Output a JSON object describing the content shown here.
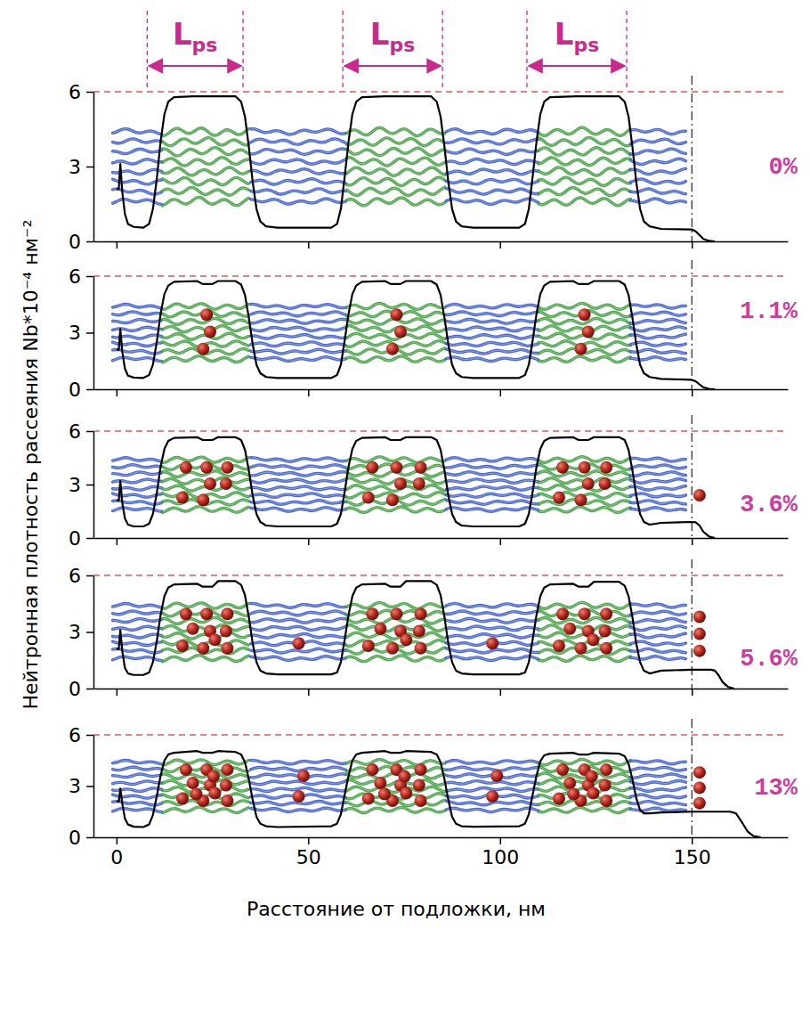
{
  "chart_data": [
    {
      "type": "line",
      "label": "0%",
      "color": "#000000",
      "xlim": [
        -6,
        175
      ],
      "ylim": [
        0,
        6
      ],
      "xticks": [
        0,
        50,
        100,
        150
      ],
      "yticks": [
        0,
        3,
        6
      ],
      "tick_labels": "y",
      "hlines": [
        6
      ],
      "vlines": [
        150
      ],
      "annotations": [
        {
          "text": "L",
          "subscript": "ps",
          "x0": 8,
          "x1": 33
        },
        {
          "text": "L",
          "subscript": "ps",
          "x0": 59,
          "x1": 85
        },
        {
          "text": "L",
          "subscript": "ps",
          "x0": 107,
          "x1": 133
        }
      ],
      "x": [
        0,
        0.6,
        1,
        1.5,
        2.2,
        3,
        4.5,
        7,
        8.5,
        9.5,
        10.5,
        11.5,
        12.5,
        13.5,
        15,
        20,
        31,
        32.5,
        33.5,
        34.5,
        35.5,
        36.5,
        37.5,
        39,
        42,
        56,
        57.5,
        58.5,
        59.5,
        60.5,
        61.5,
        62.5,
        64,
        70,
        82,
        83.5,
        84.5,
        85.5,
        86.5,
        87.5,
        88.5,
        90,
        93,
        105,
        106.5,
        107.5,
        108.5,
        109.5,
        110.5,
        111.5,
        113,
        120,
        131,
        132.5,
        133.5,
        134.5,
        135.5,
        136.5,
        137.5,
        139,
        142,
        150,
        151,
        152,
        153,
        154.5,
        156
      ],
      "values": [
        2.1,
        2.1,
        3.1,
        2.0,
        1.1,
        0.7,
        0.58,
        0.55,
        0.7,
        1.3,
        2.5,
        4.0,
        5.1,
        5.6,
        5.78,
        5.82,
        5.82,
        5.6,
        5.0,
        3.8,
        2.4,
        1.3,
        0.8,
        0.6,
        0.55,
        0.55,
        0.7,
        1.3,
        2.6,
        4.0,
        5.1,
        5.6,
        5.78,
        5.82,
        5.82,
        5.6,
        5.0,
        3.8,
        2.4,
        1.3,
        0.8,
        0.6,
        0.55,
        0.55,
        0.7,
        1.3,
        2.6,
        4.0,
        5.1,
        5.6,
        5.78,
        5.82,
        5.82,
        5.6,
        5.0,
        3.8,
        2.4,
        1.3,
        0.8,
        0.6,
        0.5,
        0.48,
        0.4,
        0.25,
        0.1,
        0.02,
        0
      ]
    },
    {
      "type": "line",
      "label": "1.1%",
      "color": "#000000",
      "xlim": [
        -6,
        175
      ],
      "ylim": [
        0,
        6
      ],
      "xticks": [
        0,
        50,
        100,
        150
      ],
      "yticks": [
        0,
        3,
        6
      ],
      "tick_labels": "y",
      "hlines": [
        6
      ],
      "vlines": [
        150
      ],
      "x": [
        0,
        0.6,
        1,
        1.5,
        2.2,
        3,
        4.5,
        7,
        8.5,
        9.5,
        10.5,
        11.5,
        12.5,
        13.5,
        15,
        21,
        22.5,
        25,
        26.5,
        31,
        32.5,
        33.5,
        34.5,
        35.5,
        36.5,
        37.5,
        39,
        42,
        56,
        57.5,
        58.5,
        59.5,
        60.5,
        61.5,
        62.5,
        64,
        70,
        71.5,
        74,
        75.5,
        82,
        83.5,
        84.5,
        85.5,
        86.5,
        87.5,
        88.5,
        90,
        93,
        105,
        106.5,
        107.5,
        108.5,
        109.5,
        110.5,
        111.5,
        113,
        119,
        120.5,
        123,
        124.5,
        131,
        132.5,
        133.5,
        134.5,
        135.5,
        136.5,
        137.5,
        139,
        142,
        150,
        151,
        152,
        153,
        154.5,
        156
      ],
      "values": [
        2.1,
        2.1,
        3.2,
        2.0,
        1.1,
        0.72,
        0.62,
        0.6,
        0.75,
        1.3,
        2.5,
        4.0,
        5.05,
        5.5,
        5.7,
        5.74,
        5.58,
        5.58,
        5.74,
        5.74,
        5.55,
        5.0,
        3.8,
        2.4,
        1.3,
        0.85,
        0.65,
        0.6,
        0.6,
        0.75,
        1.3,
        2.6,
        4.0,
        5.05,
        5.5,
        5.7,
        5.74,
        5.58,
        5.58,
        5.74,
        5.74,
        5.55,
        5.0,
        3.8,
        2.4,
        1.3,
        0.85,
        0.65,
        0.6,
        0.6,
        0.75,
        1.3,
        2.6,
        4.0,
        5.05,
        5.5,
        5.7,
        5.74,
        5.58,
        5.58,
        5.74,
        5.74,
        5.55,
        5.0,
        3.8,
        2.4,
        1.3,
        0.85,
        0.65,
        0.55,
        0.5,
        0.42,
        0.26,
        0.1,
        0.02,
        0
      ]
    },
    {
      "type": "line",
      "label": "3.6%",
      "color": "#000000",
      "y_label": "Нейтронная плотность рассеяния Nb*10⁻⁴ нм⁻²",
      "xlim": [
        -6,
        175
      ],
      "ylim": [
        0,
        6
      ],
      "xticks": [
        0,
        50,
        100,
        150
      ],
      "yticks": [
        0,
        3,
        6
      ],
      "tick_labels": "y",
      "hlines": [
        6
      ],
      "vlines": [
        150
      ],
      "x": [
        0,
        0.6,
        1,
        1.5,
        2.2,
        3,
        4.5,
        7,
        8.5,
        9.5,
        10.5,
        11.5,
        12.5,
        13.5,
        15,
        21,
        22.5,
        25,
        26.5,
        31,
        32.5,
        33.5,
        34.5,
        35.5,
        36.5,
        37.5,
        39,
        42,
        56,
        57.5,
        58.5,
        59.5,
        60.5,
        61.5,
        62.5,
        64,
        70,
        71.5,
        74,
        75.5,
        82,
        83.5,
        84.5,
        85.5,
        86.5,
        87.5,
        88.5,
        90,
        93,
        105,
        106.5,
        107.5,
        108.5,
        109.5,
        110.5,
        111.5,
        113,
        119,
        120.5,
        123,
        124.5,
        131,
        132.5,
        133.5,
        134.5,
        135.5,
        136.5,
        137.5,
        139,
        142,
        150,
        151,
        152,
        153,
        154.5,
        156
      ],
      "values": [
        2.1,
        2.1,
        3.2,
        2.0,
        1.1,
        0.75,
        0.65,
        0.65,
        0.8,
        1.35,
        2.5,
        4.0,
        5.0,
        5.45,
        5.62,
        5.66,
        5.5,
        5.5,
        5.66,
        5.66,
        5.5,
        4.95,
        3.8,
        2.4,
        1.35,
        0.9,
        0.7,
        0.65,
        0.65,
        0.8,
        1.35,
        2.6,
        4.0,
        5.0,
        5.45,
        5.62,
        5.66,
        5.5,
        5.5,
        5.66,
        5.66,
        5.5,
        4.95,
        3.8,
        2.4,
        1.35,
        0.9,
        0.7,
        0.65,
        0.65,
        0.8,
        1.35,
        2.6,
        4.0,
        5.0,
        5.45,
        5.62,
        5.66,
        5.5,
        5.5,
        5.66,
        5.66,
        5.5,
        4.95,
        3.8,
        2.4,
        1.35,
        0.9,
        0.75,
        0.85,
        0.9,
        0.88,
        0.7,
        0.35,
        0.08,
        0
      ]
    },
    {
      "type": "line",
      "label": "5.6%",
      "color": "#000000",
      "xlim": [
        -6,
        175
      ],
      "ylim": [
        0,
        6
      ],
      "xticks": [
        0,
        50,
        100,
        150
      ],
      "yticks": [
        0,
        3,
        6
      ],
      "tick_labels": "y",
      "hlines": [
        6
      ],
      "vlines": [
        150
      ],
      "x": [
        0,
        0.6,
        1,
        1.5,
        2.2,
        3,
        4.5,
        7,
        8.5,
        9.5,
        10.5,
        11.5,
        12.5,
        13.5,
        15,
        21,
        22.5,
        25,
        26.5,
        31,
        32.5,
        33.5,
        34.5,
        35.5,
        36.5,
        37.5,
        39,
        42,
        56,
        57.5,
        58.5,
        59.5,
        60.5,
        61.5,
        62.5,
        64,
        70,
        71.5,
        74,
        75.5,
        82,
        83.5,
        84.5,
        85.5,
        86.5,
        87.5,
        88.5,
        90,
        93,
        105,
        106.5,
        107.5,
        108.5,
        109.5,
        110.5,
        111.5,
        113,
        119,
        120.5,
        123,
        124.5,
        131,
        132.5,
        133.5,
        134.5,
        135.5,
        136.5,
        137.5,
        139,
        142,
        150,
        155,
        156,
        157,
        158,
        159.5,
        161
      ],
      "values": [
        2.1,
        2.1,
        3.1,
        2.0,
        1.1,
        0.8,
        0.72,
        0.72,
        0.85,
        1.4,
        2.5,
        3.9,
        4.9,
        5.35,
        5.52,
        5.56,
        5.4,
        5.4,
        5.7,
        5.7,
        5.5,
        4.95,
        3.8,
        2.4,
        1.4,
        0.95,
        0.8,
        0.75,
        0.75,
        0.85,
        1.4,
        2.6,
        3.9,
        4.9,
        5.35,
        5.52,
        5.56,
        5.4,
        5.4,
        5.7,
        5.7,
        5.5,
        4.95,
        3.8,
        2.4,
        1.4,
        0.95,
        0.8,
        0.75,
        0.75,
        0.85,
        1.4,
        2.6,
        3.9,
        4.9,
        5.35,
        5.52,
        5.56,
        5.4,
        5.4,
        5.66,
        5.66,
        5.45,
        4.9,
        3.8,
        2.4,
        1.4,
        0.95,
        0.8,
        0.95,
        1.0,
        1.0,
        0.95,
        0.7,
        0.35,
        0.08,
        0
      ]
    },
    {
      "type": "line",
      "label": "13%",
      "color": "#000000",
      "x_label": "Расстояние от подложки, нм",
      "xlim": [
        -6,
        175
      ],
      "ylim": [
        0,
        6
      ],
      "xticks": [
        0,
        50,
        100,
        150
      ],
      "yticks": [
        0,
        3,
        6
      ],
      "hlines": [
        6
      ],
      "vlines": [
        150
      ],
      "x": [
        0,
        0.6,
        1,
        1.5,
        2.2,
        3,
        4.5,
        7,
        8.5,
        9.5,
        10.5,
        11.5,
        12.5,
        13.5,
        15,
        21,
        22.5,
        25,
        26.5,
        31,
        32.5,
        33.5,
        34.5,
        35.5,
        36.5,
        37.5,
        39,
        42,
        56,
        57.5,
        58.5,
        59.5,
        60.5,
        61.5,
        62.5,
        64,
        70,
        71.5,
        74,
        75.5,
        82,
        83.5,
        84.5,
        85.5,
        86.5,
        87.5,
        88.5,
        90,
        93,
        105,
        106.5,
        107.5,
        108.5,
        109.5,
        110.5,
        111.5,
        113,
        119,
        120.5,
        123,
        124.5,
        131,
        132.5,
        133.5,
        134.5,
        135.5,
        136.5,
        137.5,
        139,
        142,
        150,
        160,
        161.5,
        163,
        164.5,
        166,
        168
      ],
      "values": [
        2.1,
        2.1,
        2.85,
        2.0,
        1.1,
        0.75,
        0.62,
        0.6,
        0.75,
        1.3,
        2.4,
        3.6,
        4.5,
        4.85,
        4.95,
        5.05,
        4.95,
        4.95,
        5.05,
        5.0,
        4.85,
        4.4,
        3.4,
        2.2,
        1.2,
        0.8,
        0.65,
        0.6,
        0.65,
        0.8,
        1.35,
        2.5,
        3.6,
        4.5,
        4.85,
        4.95,
        5.05,
        4.95,
        4.95,
        5.05,
        5.0,
        4.85,
        4.4,
        3.4,
        2.2,
        1.2,
        0.8,
        0.65,
        0.62,
        0.65,
        0.8,
        1.35,
        2.5,
        3.6,
        4.45,
        4.8,
        4.9,
        4.95,
        4.85,
        4.85,
        4.95,
        4.9,
        4.75,
        4.3,
        3.4,
        2.3,
        1.6,
        1.4,
        1.4,
        1.45,
        1.5,
        1.5,
        1.4,
        0.9,
        0.35,
        0.08,
        0
      ]
    }
  ]
}
